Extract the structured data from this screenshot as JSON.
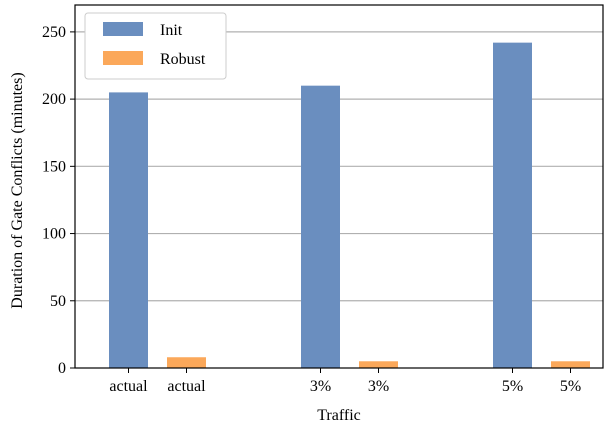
{
  "chart_data": {
    "type": "bar",
    "title": "",
    "xlabel": "Traffic",
    "ylabel": "Duration of Gate Conflicts (minutes)",
    "ylim": [
      0,
      270
    ],
    "yticks": [
      0,
      50,
      100,
      150,
      200,
      250
    ],
    "grid": "horizontal",
    "legend_placement": "top-left",
    "series": [
      {
        "name": "Init",
        "color": "#6a8ebf",
        "categories": [
          "actual",
          "3%",
          "5%"
        ],
        "values": [
          205,
          210,
          242
        ]
      },
      {
        "name": "Robust",
        "color": "#fba85a",
        "categories": [
          "actual",
          "3%",
          "5%"
        ],
        "values": [
          8,
          5,
          5
        ]
      }
    ],
    "tick_labels": [
      "actual",
      "actual",
      "3%",
      "3%",
      "5%",
      "5%"
    ]
  }
}
